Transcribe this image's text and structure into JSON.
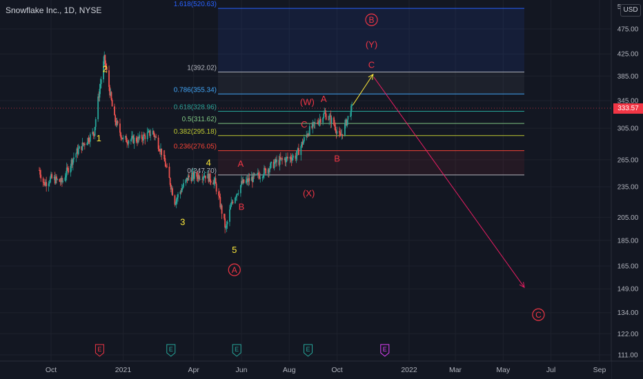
{
  "header": {
    "title": "Snowflake Inc., 1D, NYSE",
    "currency": "USD"
  },
  "chart_data": {
    "type": "candlestick",
    "title": "Snowflake Inc., 1D, NYSE",
    "y_axis": {
      "ticks": [
        111.0,
        122.0,
        134.0,
        149.0,
        165.0,
        185.0,
        205.0,
        235.0,
        265.0,
        305.0,
        345.0,
        385.0,
        425.0,
        475.0
      ],
      "top_tick": "525.00",
      "range": [
        105,
        560
      ]
    },
    "x_axis": {
      "ticks": [
        {
          "label": "Oct",
          "date": "2020-10-01"
        },
        {
          "label": "2021",
          "date": "2021-01-01"
        },
        {
          "label": "Apr",
          "date": "2021-04-01"
        },
        {
          "label": "Jun",
          "date": "2021-06-01"
        },
        {
          "label": "Aug",
          "date": "2021-08-01"
        },
        {
          "label": "Oct",
          "date": "2021-10-01"
        },
        {
          "label": "2022",
          "date": "2022-01-01"
        },
        {
          "label": "Mar",
          "date": "2022-03-01"
        },
        {
          "label": "May",
          "date": "2022-05-01"
        },
        {
          "label": "Jul",
          "date": "2022-07-01"
        },
        {
          "label": "Sep",
          "date": "2022-09-01"
        }
      ]
    },
    "last_price": "333.57",
    "price_path": [
      {
        "date": "2020-09-16",
        "price": 253
      },
      {
        "date": "2020-09-22",
        "price": 238
      },
      {
        "date": "2020-10-01",
        "price": 244
      },
      {
        "date": "2020-10-15",
        "price": 240
      },
      {
        "date": "2020-11-01",
        "price": 272
      },
      {
        "date": "2020-11-25",
        "price": 300
      },
      {
        "date": "2020-12-01",
        "price": 355
      },
      {
        "date": "2020-12-08",
        "price": 415
      },
      {
        "date": "2020-12-20",
        "price": 320
      },
      {
        "date": "2021-01-01",
        "price": 290
      },
      {
        "date": "2021-01-20",
        "price": 290
      },
      {
        "date": "2021-02-08",
        "price": 300
      },
      {
        "date": "2021-02-20",
        "price": 272
      },
      {
        "date": "2021-03-08",
        "price": 220
      },
      {
        "date": "2021-03-25",
        "price": 245
      },
      {
        "date": "2021-04-15",
        "price": 248
      },
      {
        "date": "2021-04-28",
        "price": 240
      },
      {
        "date": "2021-05-12",
        "price": 194
      },
      {
        "date": "2021-05-20",
        "price": 220
      },
      {
        "date": "2021-06-01",
        "price": 238
      },
      {
        "date": "2021-06-25",
        "price": 248
      },
      {
        "date": "2021-07-15",
        "price": 262
      },
      {
        "date": "2021-08-10",
        "price": 270
      },
      {
        "date": "2021-08-25",
        "price": 300
      },
      {
        "date": "2021-09-15",
        "price": 325
      },
      {
        "date": "2021-09-25",
        "price": 315
      },
      {
        "date": "2021-10-05",
        "price": 292
      },
      {
        "date": "2021-10-20",
        "price": 333.57
      }
    ],
    "fib_levels": [
      {
        "ratio": "1.618",
        "label": "1.618(520.63)",
        "price": 520.63,
        "color": "#2962ff"
      },
      {
        "ratio": "1",
        "label": "1(392.02)",
        "price": 392.02,
        "color": "#b2b5be"
      },
      {
        "ratio": "0.786",
        "label": "0.786(355.34)",
        "price": 355.34,
        "color": "#42a5f5"
      },
      {
        "ratio": "0.618",
        "label": "0.618(328.96)",
        "price": 328.96,
        "color": "#26a69a"
      },
      {
        "ratio": "0.5",
        "label": "0.5(311.62)",
        "price": 311.62,
        "color": "#81c784"
      },
      {
        "ratio": "0.382",
        "label": "0.382(295.18)",
        "price": 295.18,
        "color": "#c0ca33"
      },
      {
        "ratio": "0.236",
        "label": "0.236(276.05)",
        "price": 276.05,
        "color": "#f44336"
      },
      {
        "ratio": "0",
        "label": "0(247.70)",
        "price": 247.7,
        "color": "#b2b5be"
      }
    ],
    "wave_labels": [
      {
        "text": "1",
        "date": "2020-12-01",
        "price": 288,
        "color": "#ffeb3b"
      },
      {
        "text": "2",
        "date": "2020-12-09",
        "price": 392,
        "color": "#ffeb3b"
      },
      {
        "text": "3",
        "date": "2021-03-18",
        "price": 198,
        "color": "#ffeb3b"
      },
      {
        "text": "4",
        "date": "2021-04-20",
        "price": 258,
        "color": "#ffeb3b"
      },
      {
        "text": "5",
        "date": "2021-05-23",
        "price": 175,
        "color": "#ffeb3b"
      },
      {
        "text": "A",
        "date": "2021-05-23",
        "price": 160,
        "color": "#f23645",
        "circled": true
      },
      {
        "text": "A",
        "date": "2021-05-31",
        "price": 257,
        "color": "#f23645"
      },
      {
        "text": "B",
        "date": "2021-06-01",
        "price": 212,
        "color": "#f23645"
      },
      {
        "text": "C",
        "date": "2021-08-20",
        "price": 306,
        "color": "#f23645"
      },
      {
        "text": "(W)",
        "date": "2021-08-24",
        "price": 338,
        "color": "#f23645"
      },
      {
        "text": "A",
        "date": "2021-09-14",
        "price": 343,
        "color": "#f23645"
      },
      {
        "text": "(X)",
        "date": "2021-08-26",
        "price": 225,
        "color": "#f23645"
      },
      {
        "text": "B",
        "date": "2021-10-01",
        "price": 263,
        "color": "#f23645"
      },
      {
        "text": "C",
        "date": "2021-11-14",
        "price": 399,
        "color": "#f23645"
      },
      {
        "text": "(Y)",
        "date": "2021-11-14",
        "price": 437,
        "color": "#f23645"
      },
      {
        "text": "B",
        "date": "2021-11-14",
        "price": 488,
        "color": "#f23645",
        "circled": true
      },
      {
        "text": "C",
        "date": "2022-06-15",
        "price": 131,
        "color": "#f23645",
        "circled": true
      }
    ],
    "projections": [
      {
        "from": {
          "date": "2021-10-21",
          "price": 338
        },
        "to": {
          "date": "2021-11-16",
          "price": 388
        },
        "color": "#ffeb3b"
      },
      {
        "from": {
          "date": "2021-11-17",
          "price": 383
        },
        "to": {
          "date": "2022-05-28",
          "price": 150
        },
        "color": "#e91e63"
      }
    ],
    "earnings_markers": [
      {
        "text": "E",
        "date": "2020-12-02",
        "color": "#f23645"
      },
      {
        "text": "E",
        "date": "2021-03-03",
        "color": "#26a69a"
      },
      {
        "text": "E",
        "date": "2021-05-26",
        "color": "#26a69a"
      },
      {
        "text": "E",
        "date": "2021-08-25",
        "color": "#26a69a"
      },
      {
        "text": "E",
        "date": "2021-12-01",
        "color": "#e040fb"
      }
    ]
  }
}
